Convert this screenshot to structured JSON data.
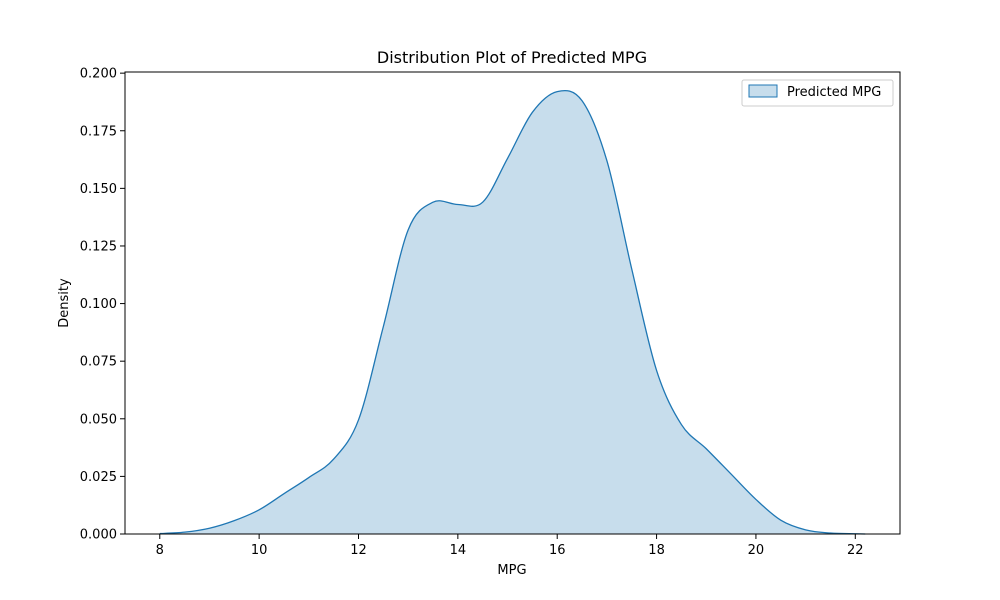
{
  "chart_data": {
    "type": "area",
    "title": "Distribution Plot of Predicted MPG",
    "xlabel": "MPG",
    "ylabel": "Density",
    "xlim": [
      7.3,
      22.9
    ],
    "ylim": [
      0,
      0.2005
    ],
    "xticks": [
      8,
      10,
      12,
      14,
      16,
      18,
      20,
      22
    ],
    "xtick_labels": [
      "8",
      "10",
      "12",
      "14",
      "16",
      "18",
      "20",
      "22"
    ],
    "yticks": [
      0,
      0.025,
      0.05,
      0.075,
      0.1,
      0.125,
      0.15,
      0.175,
      0.2
    ],
    "ytick_labels": [
      "0.000",
      "0.025",
      "0.050",
      "0.075",
      "0.100",
      "0.125",
      "0.150",
      "0.175",
      "0.200"
    ],
    "grid": false,
    "legend_position": "top-right",
    "colors": {
      "line": "#1f77b4",
      "fill": "#1f77b4",
      "fill_opacity": 0.25
    },
    "series": [
      {
        "name": "Predicted MPG",
        "x": [
          8.0,
          8.5,
          9.0,
          9.5,
          10.0,
          10.5,
          11.0,
          11.5,
          12.0,
          12.5,
          13.0,
          13.5,
          14.0,
          14.5,
          15.0,
          15.5,
          16.0,
          16.5,
          17.0,
          17.5,
          18.0,
          18.5,
          19.0,
          19.5,
          20.0,
          20.5,
          21.0,
          21.5,
          22.0,
          22.2
        ],
        "y": [
          0.0002,
          0.0008,
          0.0025,
          0.0058,
          0.0105,
          0.0175,
          0.0245,
          0.0325,
          0.0495,
          0.09,
          0.132,
          0.144,
          0.143,
          0.144,
          0.163,
          0.183,
          0.192,
          0.188,
          0.162,
          0.115,
          0.071,
          0.0475,
          0.037,
          0.026,
          0.015,
          0.006,
          0.0018,
          0.0004,
          0.0001,
          0.0
        ]
      }
    ]
  }
}
